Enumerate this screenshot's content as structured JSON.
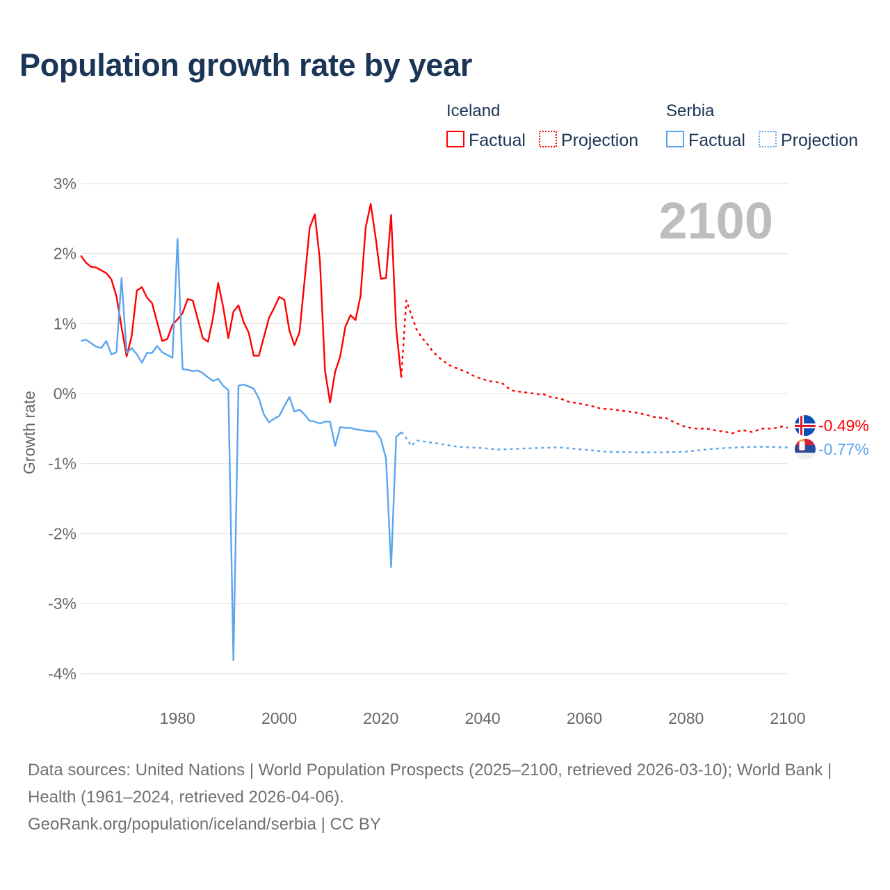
{
  "title": "Population growth rate by year",
  "legend": {
    "groups": [
      {
        "name": "Iceland",
        "factual_label": "Factual",
        "projection_label": "Projection"
      },
      {
        "name": "Serbia",
        "factual_label": "Factual",
        "projection_label": "Projection"
      }
    ]
  },
  "current_year_label": "2100",
  "footer": {
    "sources": "Data sources: United Nations | World Population Prospects (2025–2100, retrieved 2026-03-10); World Bank | Health (1961–2024, retrieved 2026-04-06).",
    "credit": "GeoRank.org/population/iceland/serbia | CC BY"
  },
  "chart_data": {
    "type": "line",
    "title": "Population growth rate by year",
    "xlabel": "",
    "ylabel": "Growth rate",
    "xlim": [
      1961,
      2100
    ],
    "ylim": [
      -4,
      3
    ],
    "x_ticks": [
      1980,
      2000,
      2020,
      2040,
      2060,
      2080,
      2100
    ],
    "x_tick_labels": [
      "1980",
      "2000",
      "2020",
      "2040",
      "2060",
      "2080",
      "2100"
    ],
    "y_ticks": [
      3,
      2,
      1,
      0,
      -1,
      -2,
      -3,
      -4
    ],
    "y_tick_labels": [
      "3%",
      "2%",
      "1%",
      "0%",
      "-1%",
      "-2%",
      "-3%",
      "-4%"
    ],
    "grid": true,
    "legend_position": "top-right",
    "series": [
      {
        "name": "Iceland",
        "kind": "Factual",
        "color": "#ff0000",
        "style": "solid",
        "x_start": 1961,
        "values": [
          1.97,
          1.87,
          1.81,
          1.8,
          1.76,
          1.72,
          1.63,
          1.39,
          0.95,
          0.53,
          0.82,
          1.47,
          1.52,
          1.37,
          1.29,
          1.02,
          0.75,
          0.78,
          0.98,
          1.06,
          1.15,
          1.35,
          1.33,
          1.06,
          0.79,
          0.74,
          1.09,
          1.58,
          1.23,
          0.79,
          1.17,
          1.26,
          1.02,
          0.87,
          0.54,
          0.54,
          0.81,
          1.08,
          1.22,
          1.38,
          1.34,
          0.9,
          0.69,
          0.88,
          1.62,
          2.37,
          2.56,
          1.9,
          0.33,
          -0.13,
          0.31,
          0.53,
          0.95,
          1.12,
          1.05,
          1.4,
          2.37,
          2.71,
          2.21,
          1.64,
          1.65,
          2.55,
          0.93,
          0.23
        ]
      },
      {
        "name": "Iceland",
        "kind": "Projection",
        "color": "#ff0000",
        "style": "dotted",
        "x": [
          2024,
          2025,
          2026,
          2027,
          2028,
          2029,
          2030,
          2031,
          2032,
          2033,
          2034,
          2035,
          2036,
          2037,
          2038,
          2039,
          2040,
          2041,
          2042,
          2043,
          2044,
          2045,
          2046,
          2047,
          2048,
          2049,
          2050,
          2051,
          2052,
          2053,
          2054,
          2055,
          2056,
          2057,
          2058,
          2059,
          2060,
          2061,
          2062,
          2063,
          2064,
          2066,
          2068,
          2070,
          2072,
          2074,
          2076,
          2078,
          2080,
          2082,
          2084,
          2086,
          2088,
          2089,
          2091,
          2093,
          2095,
          2097,
          2099,
          2100
        ],
        "values": [
          0.23,
          1.33,
          1.12,
          0.92,
          0.8,
          0.72,
          0.62,
          0.54,
          0.48,
          0.43,
          0.38,
          0.36,
          0.33,
          0.3,
          0.26,
          0.23,
          0.21,
          0.18,
          0.17,
          0.16,
          0.14,
          0.08,
          0.04,
          0.03,
          0.02,
          0.01,
          0.0,
          -0.01,
          -0.01,
          -0.04,
          -0.06,
          -0.07,
          -0.09,
          -0.12,
          -0.13,
          -0.14,
          -0.16,
          -0.17,
          -0.19,
          -0.21,
          -0.22,
          -0.23,
          -0.25,
          -0.27,
          -0.3,
          -0.34,
          -0.35,
          -0.42,
          -0.48,
          -0.5,
          -0.5,
          -0.53,
          -0.55,
          -0.57,
          -0.52,
          -0.55,
          -0.5,
          -0.5,
          -0.47,
          -0.49
        ]
      },
      {
        "name": "Serbia",
        "kind": "Factual",
        "color": "#5aa5ee",
        "style": "solid",
        "x_start": 1961,
        "values": [
          0.75,
          0.77,
          0.72,
          0.67,
          0.65,
          0.75,
          0.56,
          0.59,
          1.65,
          0.58,
          0.65,
          0.56,
          0.44,
          0.58,
          0.58,
          0.68,
          0.59,
          0.55,
          0.51,
          2.21,
          0.35,
          0.34,
          0.32,
          0.33,
          0.29,
          0.23,
          0.18,
          0.21,
          0.11,
          0.05,
          -3.81,
          0.11,
          0.13,
          0.1,
          0.07,
          -0.07,
          -0.3,
          -0.41,
          -0.36,
          -0.32,
          -0.18,
          -0.05,
          -0.26,
          -0.23,
          -0.3,
          -0.39,
          -0.4,
          -0.43,
          -0.4,
          -0.4,
          -0.75,
          -0.48,
          -0.49,
          -0.49,
          -0.51,
          -0.52,
          -0.53,
          -0.54,
          -0.54,
          -0.65,
          -0.93,
          -2.48,
          -0.62,
          -0.55
        ]
      },
      {
        "name": "Serbia",
        "kind": "Projection",
        "color": "#5aa5ee",
        "style": "dotted",
        "x": [
          2024,
          2025,
          2026,
          2027,
          2030,
          2035,
          2040,
          2043,
          2050,
          2055,
          2060,
          2064,
          2070,
          2075,
          2080,
          2085,
          2090,
          2095,
          2100
        ],
        "values": [
          -0.55,
          -0.64,
          -0.75,
          -0.67,
          -0.7,
          -0.76,
          -0.78,
          -0.8,
          -0.78,
          -0.77,
          -0.8,
          -0.83,
          -0.84,
          -0.84,
          -0.83,
          -0.79,
          -0.77,
          -0.76,
          -0.77
        ]
      }
    ],
    "end_labels": [
      {
        "name": "Iceland",
        "value": -0.49,
        "text": "-0.49%",
        "icon": "iceland-flag-icon"
      },
      {
        "name": "Serbia",
        "value": -0.77,
        "text": "-0.77%",
        "icon": "serbia-flag-icon"
      }
    ]
  }
}
